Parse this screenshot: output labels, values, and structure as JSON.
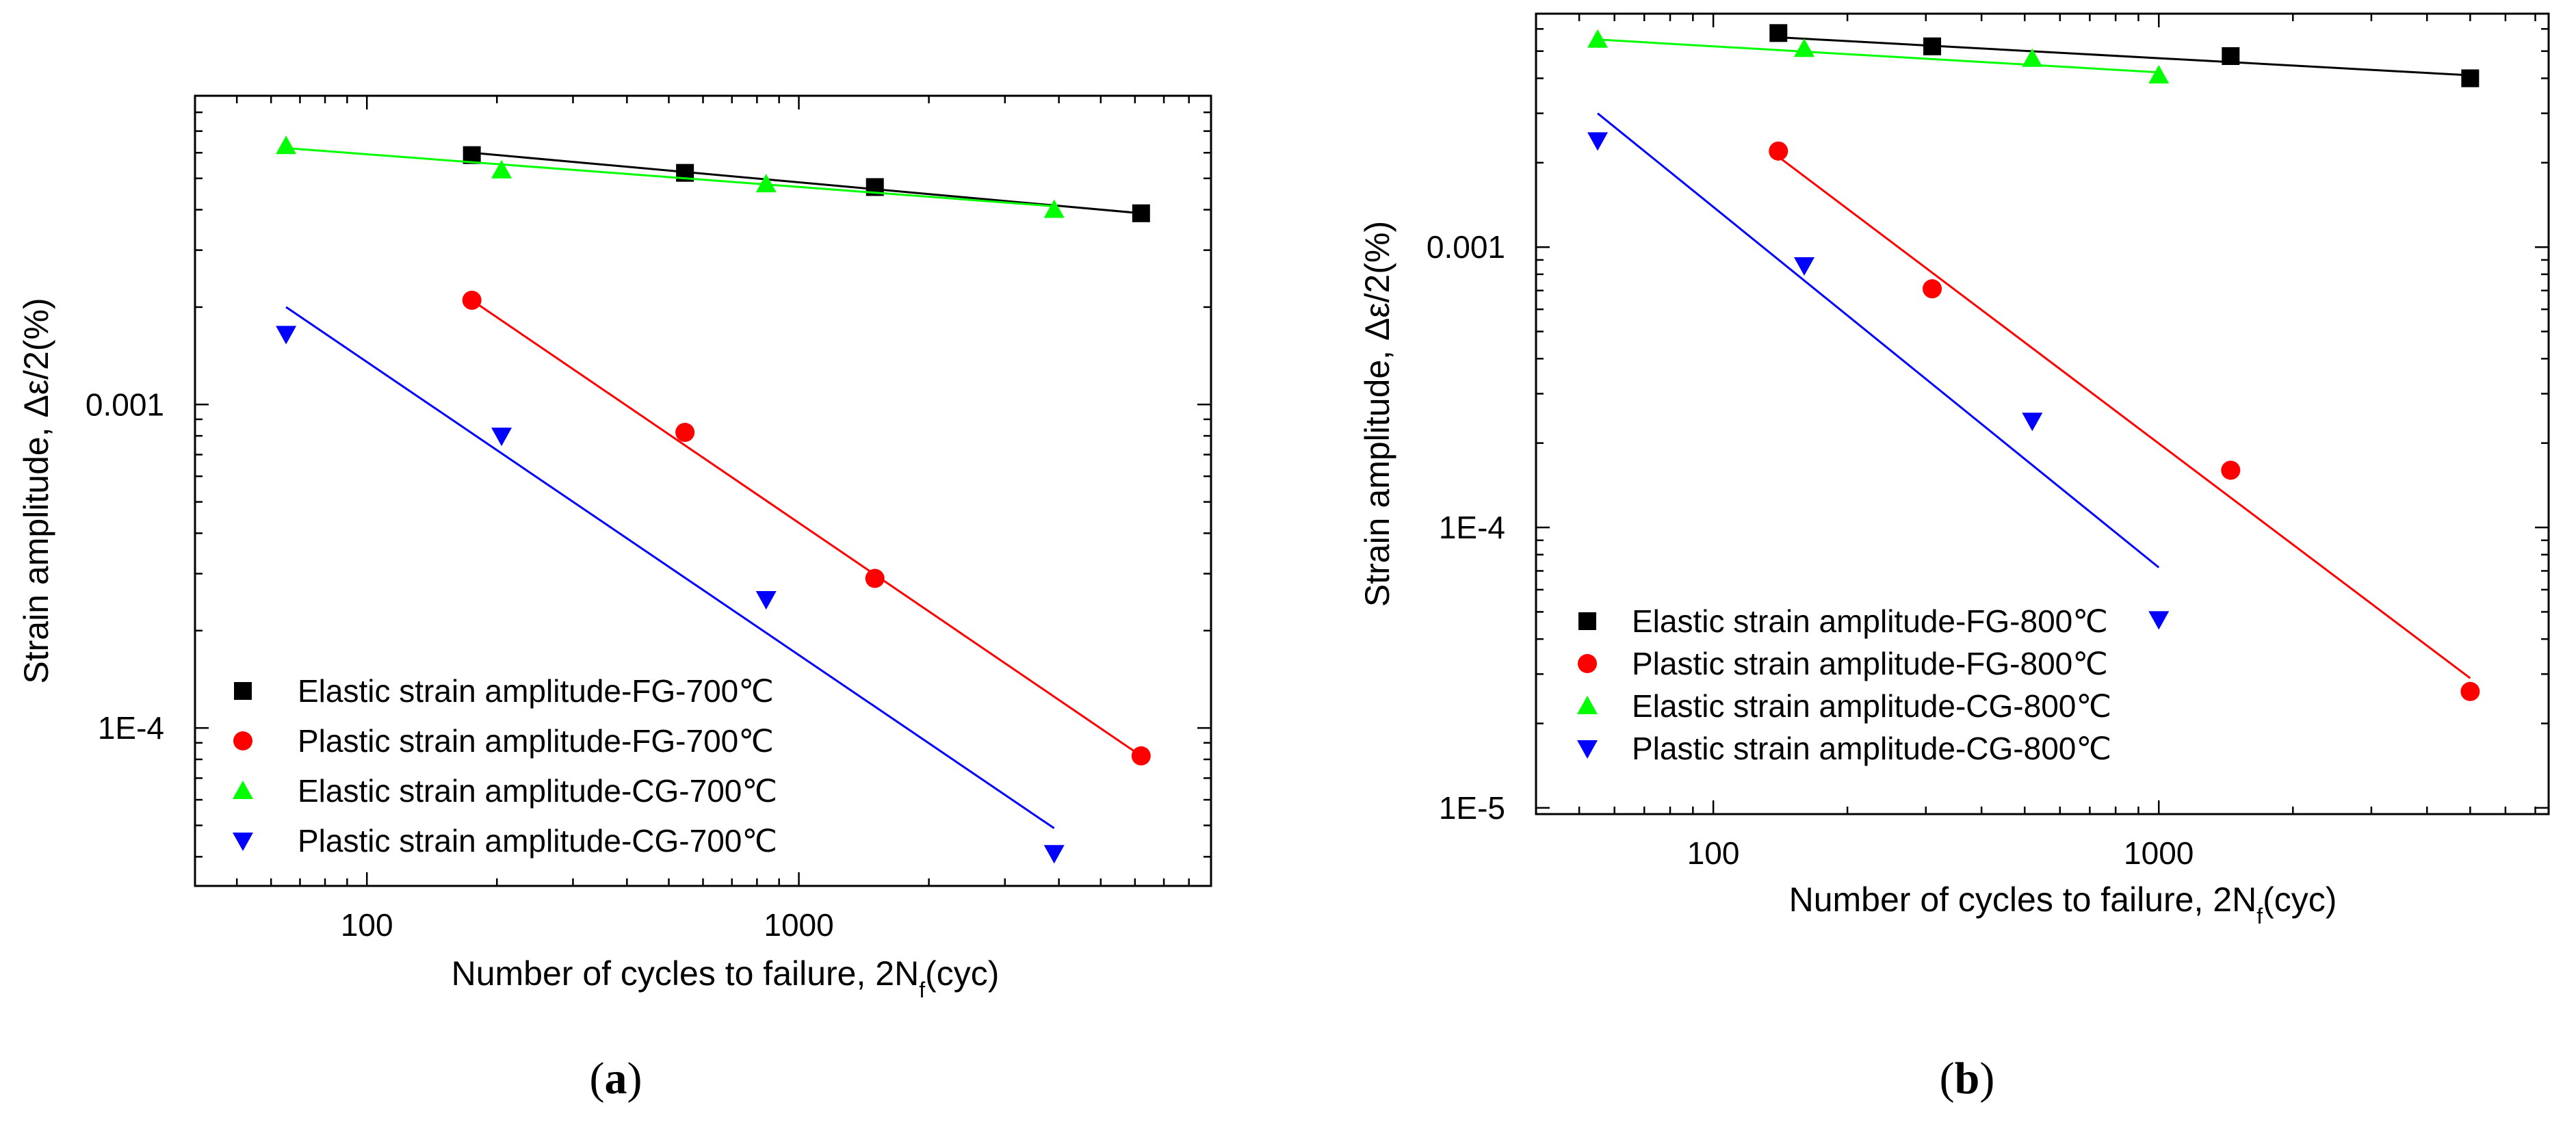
{
  "chart_data": [
    {
      "type": "scatter",
      "panel": "a",
      "caption": "(a)",
      "caption_letter": "a",
      "xlabel": "Number of cycles to failure, 2N",
      "xlabel_sub": "f",
      "xlabel_suffix": "(cyc)",
      "ylabel": "Strain amplitude, Δε/2(%)",
      "xscale": "log",
      "yscale": "log",
      "xlim": [
        40,
        9000
      ],
      "ylim": [
        3.25e-05,
        0.009
      ],
      "xticks": [
        {
          "value": 100,
          "label": "100"
        },
        {
          "value": 1000,
          "label": "1000"
        }
      ],
      "yticks": [
        {
          "value": 0.0001,
          "label": "1E-4"
        },
        {
          "value": 0.001,
          "label": "0.001"
        }
      ],
      "legend_position": "bottom-left",
      "series": [
        {
          "name": "Elastic strain amplitude-FG-700℃",
          "marker": "square",
          "color": "#000000",
          "x": [
            175,
            545,
            1500,
            6200
          ],
          "y": [
            0.0059,
            0.0052,
            0.0047,
            0.0039
          ],
          "fit": {
            "x": [
              175,
              6200
            ],
            "y": [
              0.006,
              0.0039
            ]
          }
        },
        {
          "name": "Plastic strain amplitude-FG-700℃",
          "marker": "circle",
          "color": "#ff0000",
          "x": [
            175,
            545,
            1500,
            6200
          ],
          "y": [
            0.0021,
            0.00082,
            0.00029,
            8.2e-05
          ],
          "fit": {
            "x": [
              175,
              6200
            ],
            "y": [
              0.0021,
              8.2e-05
            ]
          }
        },
        {
          "name": "Elastic strain amplitude-CG-700℃",
          "marker": "triangle-up",
          "color": "#00ff00",
          "x": [
            65,
            205,
            840,
            3900
          ],
          "y": [
            0.0063,
            0.0053,
            0.0048,
            0.004
          ],
          "fit": {
            "x": [
              65,
              3900
            ],
            "y": [
              0.0062,
              0.0041
            ]
          }
        },
        {
          "name": "Plastic strain amplitude-CG-700℃",
          "marker": "triangle-down",
          "color": "#0000ff",
          "x": [
            65,
            205,
            840,
            3900
          ],
          "y": [
            0.00165,
            0.0008,
            0.00025,
            4.1e-05
          ],
          "fit": {
            "x": [
              65,
              3900
            ],
            "y": [
              0.002,
              4.9e-05
            ]
          }
        }
      ]
    },
    {
      "type": "scatter",
      "panel": "b",
      "caption": "(b)",
      "caption_letter": "b",
      "xlabel": "Number of cycles to failure, 2N",
      "xlabel_sub": "f",
      "xlabel_suffix": "(cyc)",
      "ylabel": "Strain amplitude, Δε/2(%)",
      "xscale": "log",
      "yscale": "log",
      "xlim": [
        40,
        7500
      ],
      "ylim": [
        9.5e-06,
        0.0068
      ],
      "xticks": [
        {
          "value": 100,
          "label": "100"
        },
        {
          "value": 1000,
          "label": "1000"
        }
      ],
      "yticks": [
        {
          "value": 1e-05,
          "label": "1E-5"
        },
        {
          "value": 0.0001,
          "label": "1E-4"
        },
        {
          "value": 0.001,
          "label": "0.001"
        }
      ],
      "legend_position": "bottom-left",
      "series": [
        {
          "name": "Elastic strain amplitude-FG-800℃",
          "marker": "square",
          "color": "#000000",
          "x": [
            140,
            310,
            1450,
            5000
          ],
          "y": [
            0.0058,
            0.0052,
            0.0048,
            0.004
          ],
          "fit": {
            "x": [
              140,
              5000
            ],
            "y": [
              0.0056,
              0.0041
            ]
          }
        },
        {
          "name": "Plastic strain amplitude-FG-800℃",
          "marker": "circle",
          "color": "#ff0000",
          "x": [
            140,
            310,
            1450,
            5000
          ],
          "y": [
            0.0022,
            0.00071,
            0.00016,
            2.6e-05
          ],
          "fit": {
            "x": [
              140,
              5000
            ],
            "y": [
              0.0021,
              2.9e-05
            ]
          }
        },
        {
          "name": "Elastic strain amplitude-CG-800℃",
          "marker": "triangle-up",
          "color": "#00ff00",
          "x": [
            55,
            160,
            520,
            1000
          ],
          "y": [
            0.0055,
            0.0051,
            0.0047,
            0.0041
          ],
          "fit": {
            "x": [
              55,
              1000
            ],
            "y": [
              0.0055,
              0.0042
            ]
          }
        },
        {
          "name": "Plastic strain amplitude-CG-800℃",
          "marker": "triangle-down",
          "color": "#0000ff",
          "x": [
            55,
            160,
            520,
            1000
          ],
          "y": [
            0.0024,
            0.00086,
            0.00024,
            4.7e-05
          ],
          "fit": {
            "x": [
              55,
              1000
            ],
            "y": [
              0.003,
              7.2e-05
            ]
          }
        }
      ]
    }
  ]
}
